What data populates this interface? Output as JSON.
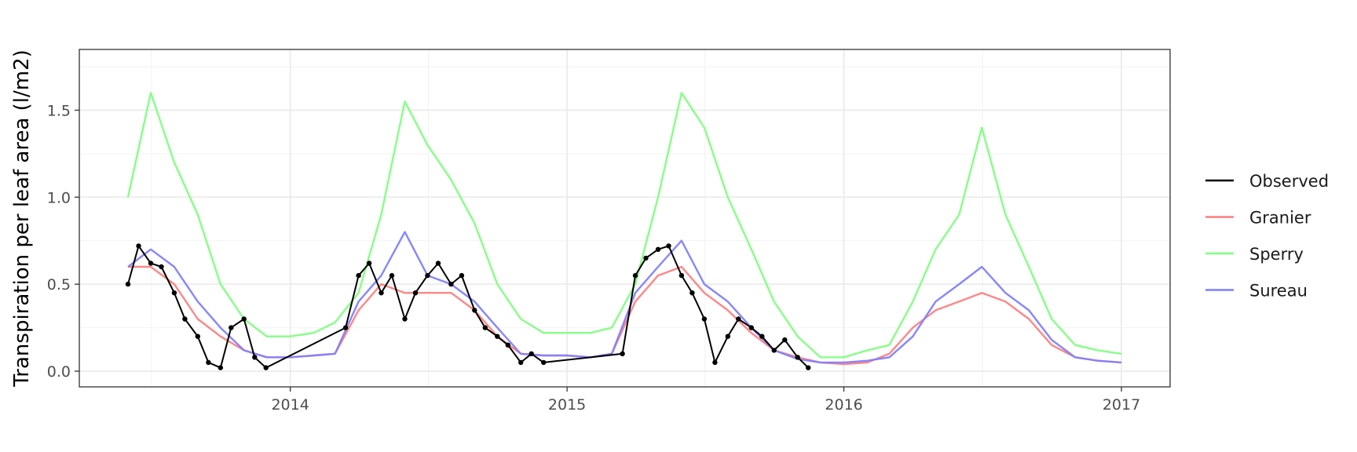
{
  "chart_data": {
    "type": "line",
    "title": "",
    "xlabel": "",
    "ylabel": "Transpiration per leaf area (l/m2)",
    "x_range": [
      "2013-06-01",
      "2017-01-01"
    ],
    "ylim": [
      0,
      1.75
    ],
    "x_ticks": [
      {
        "date": "2014-01-01",
        "label": "2014"
      },
      {
        "date": "2015-01-01",
        "label": "2015"
      },
      {
        "date": "2016-01-01",
        "label": "2016"
      },
      {
        "date": "2017-01-01",
        "label": "2017"
      }
    ],
    "y_ticks": [
      {
        "value": 0.0,
        "label": "0.0"
      },
      {
        "value": 0.5,
        "label": "0.5"
      },
      {
        "value": 1.0,
        "label": "1.0"
      },
      {
        "value": 1.5,
        "label": "1.5"
      }
    ],
    "grid": true,
    "legend": {
      "position": "right"
    },
    "series": [
      {
        "name": "Observed",
        "color": "#000000",
        "marker": "point",
        "x": [
          "2013-06-01",
          "2013-06-15",
          "2013-07-01",
          "2013-07-15",
          "2013-08-01",
          "2013-08-15",
          "2013-09-01",
          "2013-09-15",
          "2013-10-01",
          "2013-10-15",
          "2013-11-01",
          "2013-11-15",
          "2013-11-30",
          "2014-03-15",
          "2014-04-01",
          "2014-04-15",
          "2014-05-01",
          "2014-05-15",
          "2014-06-01",
          "2014-06-15",
          "2014-07-01",
          "2014-07-15",
          "2014-08-01",
          "2014-08-15",
          "2014-09-01",
          "2014-09-15",
          "2014-10-01",
          "2014-10-15",
          "2014-11-01",
          "2014-11-15",
          "2014-12-01",
          "2015-03-15",
          "2015-04-01",
          "2015-04-15",
          "2015-05-01",
          "2015-05-15",
          "2015-06-01",
          "2015-06-15",
          "2015-07-01",
          "2015-07-15",
          "2015-08-01",
          "2015-08-15",
          "2015-09-01",
          "2015-09-15",
          "2015-10-01",
          "2015-10-15",
          "2015-11-01",
          "2015-11-15"
        ],
        "y": [
          0.5,
          0.72,
          0.62,
          0.6,
          0.45,
          0.3,
          0.2,
          0.05,
          0.02,
          0.25,
          0.3,
          0.08,
          0.02,
          0.25,
          0.55,
          0.62,
          0.45,
          0.55,
          0.3,
          0.45,
          0.55,
          0.62,
          0.5,
          0.55,
          0.35,
          0.25,
          0.2,
          0.15,
          0.05,
          0.1,
          0.05,
          0.1,
          0.55,
          0.65,
          0.7,
          0.72,
          0.55,
          0.45,
          0.3,
          0.05,
          0.2,
          0.3,
          0.25,
          0.2,
          0.12,
          0.18,
          0.08,
          0.02
        ]
      },
      {
        "name": "Granier",
        "color": "#ff7f7f",
        "marker": "line",
        "x": [
          "2013-06-01",
          "2013-07-01",
          "2013-08-01",
          "2013-09-01",
          "2013-10-01",
          "2013-11-01",
          "2013-12-01",
          "2014-01-01",
          "2014-02-01",
          "2014-03-01",
          "2014-04-01",
          "2014-05-01",
          "2014-06-01",
          "2014-07-01",
          "2014-08-01",
          "2014-09-01",
          "2014-10-01",
          "2014-11-01",
          "2014-12-01",
          "2015-01-01",
          "2015-02-01",
          "2015-03-01",
          "2015-04-01",
          "2015-05-01",
          "2015-06-01",
          "2015-07-01",
          "2015-08-01",
          "2015-09-01",
          "2015-10-01",
          "2015-11-01",
          "2015-12-01",
          "2016-01-01",
          "2016-02-01",
          "2016-03-01",
          "2016-04-01",
          "2016-05-01",
          "2016-06-01",
          "2016-07-01",
          "2016-08-01",
          "2016-09-01",
          "2016-10-01",
          "2016-11-01",
          "2016-12-01",
          "2017-01-01"
        ],
        "y": [
          0.6,
          0.6,
          0.5,
          0.3,
          0.2,
          0.12,
          0.08,
          0.08,
          0.09,
          0.1,
          0.35,
          0.5,
          0.45,
          0.45,
          0.45,
          0.35,
          0.2,
          0.1,
          0.09,
          0.09,
          0.08,
          0.1,
          0.4,
          0.55,
          0.6,
          0.45,
          0.35,
          0.22,
          0.12,
          0.08,
          0.05,
          0.04,
          0.05,
          0.1,
          0.25,
          0.35,
          0.4,
          0.45,
          0.4,
          0.3,
          0.15,
          0.08,
          0.06,
          0.05
        ]
      },
      {
        "name": "Sperry",
        "color": "#7fff7f",
        "marker": "line",
        "x": [
          "2013-06-01",
          "2013-07-01",
          "2013-08-01",
          "2013-09-01",
          "2013-10-01",
          "2013-11-01",
          "2013-12-01",
          "2014-01-01",
          "2014-02-01",
          "2014-03-01",
          "2014-04-01",
          "2014-05-01",
          "2014-06-01",
          "2014-07-01",
          "2014-08-01",
          "2014-09-01",
          "2014-10-01",
          "2014-11-01",
          "2014-12-01",
          "2015-01-01",
          "2015-02-01",
          "2015-03-01",
          "2015-04-01",
          "2015-05-01",
          "2015-06-01",
          "2015-07-01",
          "2015-08-01",
          "2015-09-01",
          "2015-10-01",
          "2015-11-01",
          "2015-12-01",
          "2016-01-01",
          "2016-02-01",
          "2016-03-01",
          "2016-04-01",
          "2016-05-01",
          "2016-06-01",
          "2016-07-01",
          "2016-08-01",
          "2016-09-01",
          "2016-10-01",
          "2016-11-01",
          "2016-12-01",
          "2017-01-01"
        ],
        "y": [
          1.0,
          1.6,
          1.2,
          0.9,
          0.5,
          0.3,
          0.2,
          0.2,
          0.22,
          0.28,
          0.45,
          0.9,
          1.55,
          1.3,
          1.1,
          0.85,
          0.5,
          0.3,
          0.22,
          0.22,
          0.22,
          0.25,
          0.5,
          1.0,
          1.6,
          1.4,
          1.0,
          0.7,
          0.4,
          0.2,
          0.08,
          0.08,
          0.12,
          0.15,
          0.4,
          0.7,
          0.9,
          1.4,
          0.9,
          0.6,
          0.3,
          0.15,
          0.12,
          0.1
        ]
      },
      {
        "name": "Sureau",
        "color": "#7f7fff",
        "marker": "line",
        "x": [
          "2013-06-01",
          "2013-07-01",
          "2013-08-01",
          "2013-09-01",
          "2013-10-01",
          "2013-11-01",
          "2013-12-01",
          "2014-01-01",
          "2014-02-01",
          "2014-03-01",
          "2014-04-01",
          "2014-05-01",
          "2014-06-01",
          "2014-07-01",
          "2014-08-01",
          "2014-09-01",
          "2014-10-01",
          "2014-11-01",
          "2014-12-01",
          "2015-01-01",
          "2015-02-01",
          "2015-03-01",
          "2015-04-01",
          "2015-05-01",
          "2015-06-01",
          "2015-07-01",
          "2015-08-01",
          "2015-09-01",
          "2015-10-01",
          "2015-11-01",
          "2015-12-01",
          "2016-01-01",
          "2016-02-01",
          "2016-03-01",
          "2016-04-01",
          "2016-05-01",
          "2016-06-01",
          "2016-07-01",
          "2016-08-01",
          "2016-09-01",
          "2016-10-01",
          "2016-11-01",
          "2016-12-01",
          "2017-01-01"
        ],
        "y": [
          0.6,
          0.7,
          0.6,
          0.4,
          0.25,
          0.12,
          0.08,
          0.08,
          0.09,
          0.1,
          0.4,
          0.55,
          0.8,
          0.55,
          0.5,
          0.4,
          0.25,
          0.1,
          0.09,
          0.09,
          0.08,
          0.1,
          0.45,
          0.6,
          0.75,
          0.5,
          0.4,
          0.25,
          0.12,
          0.07,
          0.05,
          0.05,
          0.06,
          0.08,
          0.2,
          0.4,
          0.5,
          0.6,
          0.45,
          0.35,
          0.18,
          0.08,
          0.06,
          0.05
        ]
      }
    ]
  }
}
